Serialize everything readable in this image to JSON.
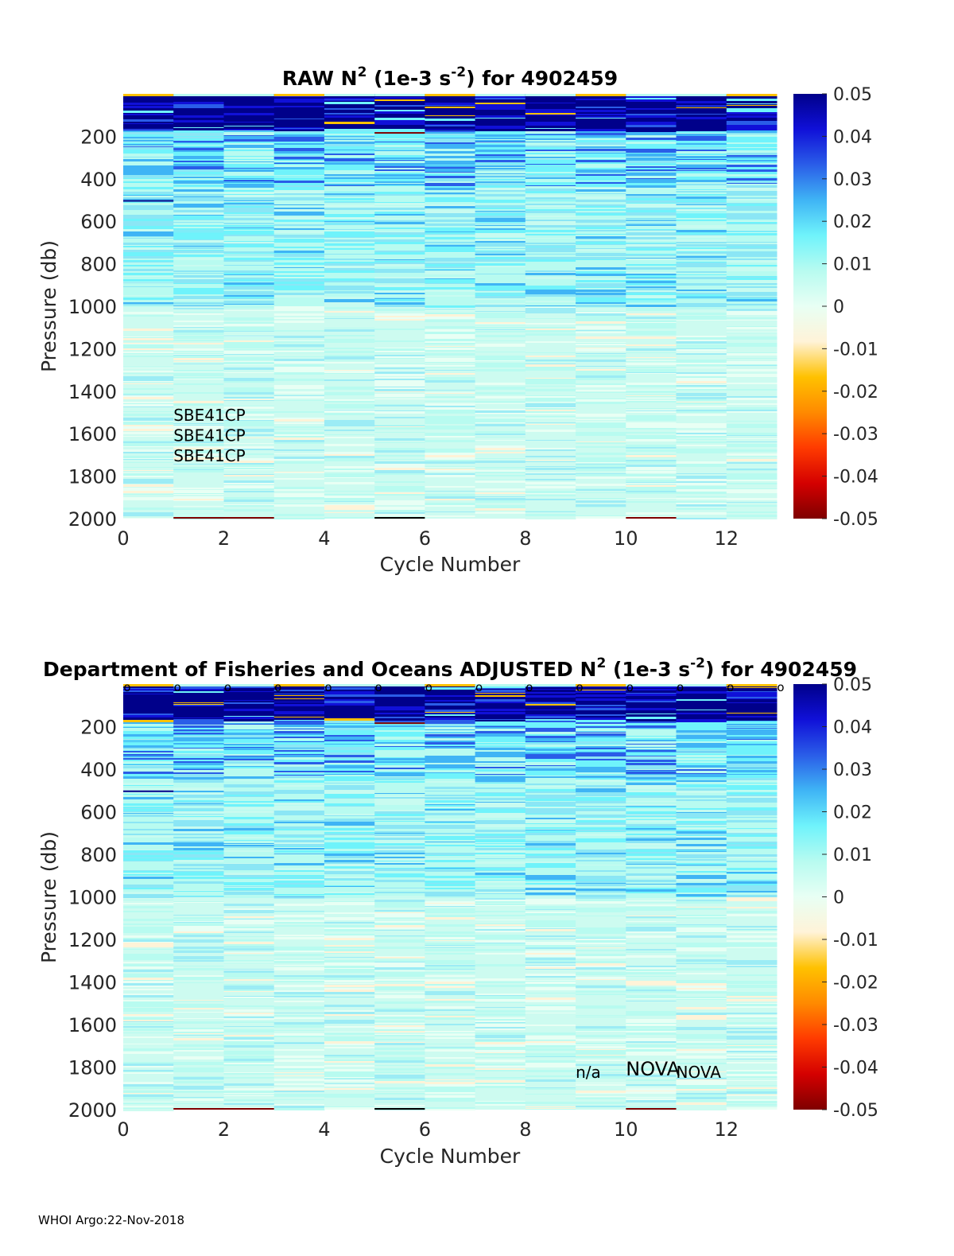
{
  "footer": "WHOI Argo:22-Nov-2018",
  "colormap": [
    "#7f0000",
    "#d40000",
    "#ff3b00",
    "#ff8a00",
    "#ffc100",
    "#fff3d8",
    "#e8fff4",
    "#b8fbf0",
    "#6ff3fb",
    "#3fb4f5",
    "#2a5de8",
    "#1010d8",
    "#00008a"
  ],
  "chart_data": [
    {
      "type": "heatmap",
      "title_prefix": "RAW N",
      "title_sup1": "2",
      "title_mid": " (1e-3 s",
      "title_sup2": "-2",
      "title_suffix": ") for 4902459",
      "xlabel": "Cycle Number",
      "ylabel": "Pressure (db)",
      "xlim": [
        0,
        13
      ],
      "ylim": [
        0,
        2000
      ],
      "xticks": [
        "0",
        "2",
        "4",
        "6",
        "8",
        "10",
        "12"
      ],
      "yticks": [
        "200",
        "400",
        "600",
        "800",
        "1000",
        "1200",
        "1400",
        "1600",
        "1800",
        "2000"
      ],
      "colorbar_ticks": [
        "0.05",
        "0.04",
        "0.03",
        "0.02",
        "0.01",
        "0",
        "-0.01",
        "-0.02",
        "-0.03",
        "-0.04",
        "-0.05"
      ],
      "clim": [
        -0.05,
        0.05
      ],
      "cycles": 13,
      "annotations": [
        {
          "text": "SBE41CP",
          "x": 1,
          "y": 1540
        },
        {
          "text": "SBE41CP",
          "x": 1,
          "y": 1635
        },
        {
          "text": "SBE41CP",
          "x": 1,
          "y": 1730
        }
      ],
      "markers": []
    },
    {
      "type": "heatmap",
      "title_prefix": "Department of Fisheries and Oceans  ADJUSTED N",
      "title_sup1": "2",
      "title_mid": " (1e-3 s",
      "title_sup2": "-2",
      "title_suffix": ") for 4902459",
      "xlabel": "Cycle Number",
      "ylabel": "Pressure (db)",
      "xlim": [
        0,
        13
      ],
      "ylim": [
        0,
        2000
      ],
      "xticks": [
        "0",
        "2",
        "4",
        "6",
        "8",
        "10",
        "12"
      ],
      "yticks": [
        "200",
        "400",
        "600",
        "800",
        "1000",
        "1200",
        "1400",
        "1600",
        "1800",
        "2000"
      ],
      "colorbar_ticks": [
        "0.05",
        "0.04",
        "0.03",
        "0.02",
        "0.01",
        "0",
        "-0.01",
        "-0.02",
        "-0.03",
        "-0.04",
        "-0.05"
      ],
      "clim": [
        -0.05,
        0.05
      ],
      "cycles": 13,
      "annotations": [
        {
          "text": "n/a",
          "x": 9,
          "y": 1850
        },
        {
          "text": "NOVA",
          "x": 10,
          "y": 1840
        },
        {
          "text": "NOVA",
          "x": 11,
          "y": 1850
        }
      ],
      "markers": [
        "o",
        "o",
        "o",
        "o",
        "o",
        "o",
        "o",
        "o",
        "o",
        "o",
        "o",
        "o",
        "o",
        "o"
      ]
    }
  ]
}
